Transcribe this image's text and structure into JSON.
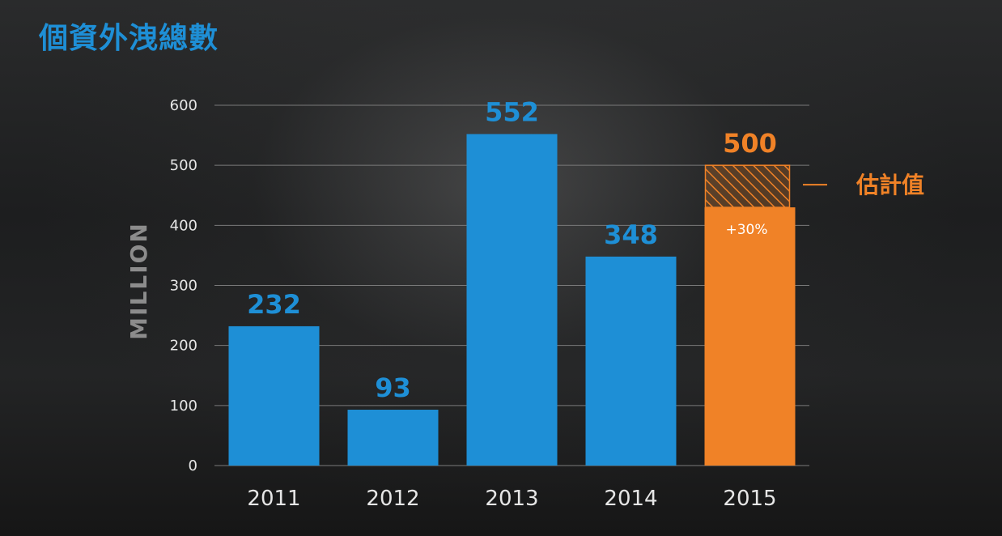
{
  "title": "個資外洩總數",
  "colors": {
    "bar": "#1e8fd6",
    "highlight": "#f08227",
    "axis_text": "#e6e6e6",
    "grid": "#7a7a7a",
    "ylabel": "#8c8c8c"
  },
  "chart_data": {
    "type": "bar",
    "categories": [
      "2011",
      "2012",
      "2013",
      "2014",
      "2015"
    ],
    "values": [
      232,
      93,
      552,
      348,
      500
    ],
    "labels": [
      "232",
      "93",
      "552",
      "348",
      "500"
    ],
    "ylabel": "MILLION",
    "ylim": [
      0,
      600
    ],
    "yticks": [
      0,
      100,
      200,
      300,
      400,
      500,
      600
    ],
    "grid": true,
    "highlight_index": 4,
    "highlight_solid_value": 430,
    "highlight_note": "+30%",
    "estimate_label": "估計值"
  }
}
